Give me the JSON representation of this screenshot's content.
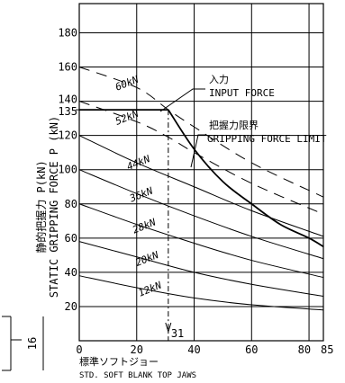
{
  "chart_data": {
    "type": "line",
    "ylabel_jp": "静的把握力 P(kN)",
    "ylabel_en": "STATIC GRIPPING FORCE P (kN)",
    "xlabel_jp": "標準ソフトジョー",
    "xlabel_en": "STD. SOFT BLANK TOP JAWS",
    "xlim": [
      0,
      85
    ],
    "ylim": [
      0,
      200
    ],
    "x_ticks": [
      "0",
      "20",
      "40",
      "60",
      "80",
      "85"
    ],
    "y_ticks": [
      "20",
      "40",
      "60",
      "80",
      "100",
      "120",
      "135",
      "140",
      "160",
      "180"
    ],
    "marker_x_label": "31",
    "input_force_label_jp": "入力",
    "input_force_label_en": "INPUT FORCE",
    "limit_label_jp": "把握力限界",
    "limit_label_en": "GRIPPING FORCE LIMIT",
    "left_dim_label": "16",
    "series": [
      {
        "name": "12kN",
        "x": [
          0,
          20,
          40,
          60,
          85
        ],
        "y": [
          38,
          31,
          25,
          21,
          18
        ]
      },
      {
        "name": "20kN",
        "x": [
          0,
          20,
          40,
          60,
          85
        ],
        "y": [
          58,
          49,
          40,
          33,
          26
        ]
      },
      {
        "name": "28kN",
        "x": [
          0,
          20,
          40,
          60,
          85
        ],
        "y": [
          80,
          68,
          57,
          47,
          37
        ]
      },
      {
        "name": "36kN",
        "x": [
          0,
          20,
          40,
          60,
          85
        ],
        "y": [
          100,
          86,
          73,
          61,
          48
        ]
      },
      {
        "name": "44kN",
        "x": [
          0,
          20,
          40,
          60,
          85
        ],
        "y": [
          120,
          104,
          90,
          76,
          61
        ]
      },
      {
        "name": "52kN",
        "x": [
          0,
          20,
          31,
          40,
          60,
          85
        ],
        "y": [
          140,
          128,
          119,
          110,
          92,
          74
        ]
      },
      {
        "name": "60kN",
        "x": [
          0,
          20,
          31,
          40,
          60,
          85
        ],
        "y": [
          160,
          148,
          135,
          125,
          104,
          84
        ]
      }
    ],
    "limit_curve": {
      "x": [
        0,
        31,
        40,
        50,
        60,
        70,
        80,
        85
      ],
      "y": [
        135,
        135,
        112,
        93,
        80,
        68,
        60,
        55
      ]
    }
  }
}
